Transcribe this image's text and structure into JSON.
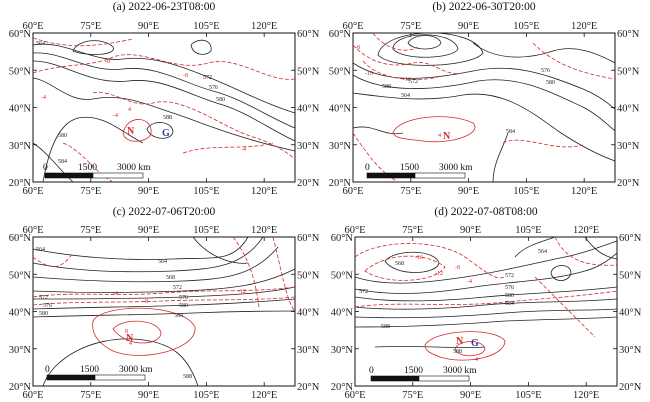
{
  "figure": {
    "panels": [
      {
        "title": "(a) 2022-06-23T08:00",
        "markers": [
          {
            "text": "N",
            "color": "#d42a2a"
          },
          {
            "text": "G",
            "color": "#2a3aa8"
          }
        ],
        "scalebar": [
          "0",
          "1500",
          "3000 km"
        ],
        "black_contour_labels": [
          "564",
          "572",
          "576",
          "580",
          "588",
          "580",
          "584"
        ],
        "red_contour_labels": [
          "-8",
          "-4",
          "-8",
          "-4",
          "4",
          "-4"
        ]
      },
      {
        "title": "(b) 2022-06-30T20:00",
        "markers": [
          {
            "text": "N",
            "color": "#d42a2a"
          }
        ],
        "scalebar": [
          "0",
          "1500",
          "3000 km"
        ],
        "black_contour_labels": [
          "564",
          "572",
          "576",
          "580",
          "588",
          "584"
        ],
        "red_contour_labels": [
          "-8",
          "-16",
          "-12",
          "4"
        ]
      },
      {
        "title": "(c) 2022-07-06T20:00",
        "markers": [
          {
            "text": "N",
            "color": "#d42a2a"
          }
        ],
        "scalebar": [
          "0",
          "1500",
          "3000 km"
        ],
        "black_contour_labels": [
          "564",
          "568",
          "572",
          "576",
          "580",
          "584",
          "588",
          "572",
          "576",
          "580",
          "588"
        ],
        "red_contour_labels": [
          "-8",
          "-4",
          "-12",
          "4",
          "8"
        ]
      },
      {
        "title": "(d) 2022-07-08T08:00",
        "markers": [
          {
            "text": "N",
            "color": "#d42a2a"
          },
          {
            "text": "G",
            "color": "#2a3aa8"
          }
        ],
        "scalebar": [
          "0",
          "1500",
          "3000 km"
        ],
        "black_contour_labels": [
          "564",
          "568",
          "572",
          "576",
          "580",
          "584",
          "588",
          "588",
          "564"
        ],
        "red_contour_labels": [
          "-16",
          "-12",
          "-8",
          "-4",
          "4"
        ]
      }
    ]
  },
  "chart_data": {
    "type": "contour_map",
    "panel_count": 4,
    "xlim": [
      60,
      128
    ],
    "ylim": [
      20,
      60
    ],
    "x_ticks": [
      60,
      75,
      90,
      105,
      120
    ],
    "x_tick_labels": [
      "60°E",
      "75°E",
      "90°E",
      "105°E",
      "120°E"
    ],
    "y_ticks": [
      20,
      30,
      40,
      50,
      60
    ],
    "y_tick_labels": [
      "20°N",
      "30°N",
      "40°N",
      "50°N",
      "60°N"
    ],
    "contour_styles": {
      "geopotential": {
        "color": "#222222",
        "style": "solid"
      },
      "anomaly": {
        "color": "#d42a2a",
        "style": "solid and dashed"
      }
    }
  }
}
